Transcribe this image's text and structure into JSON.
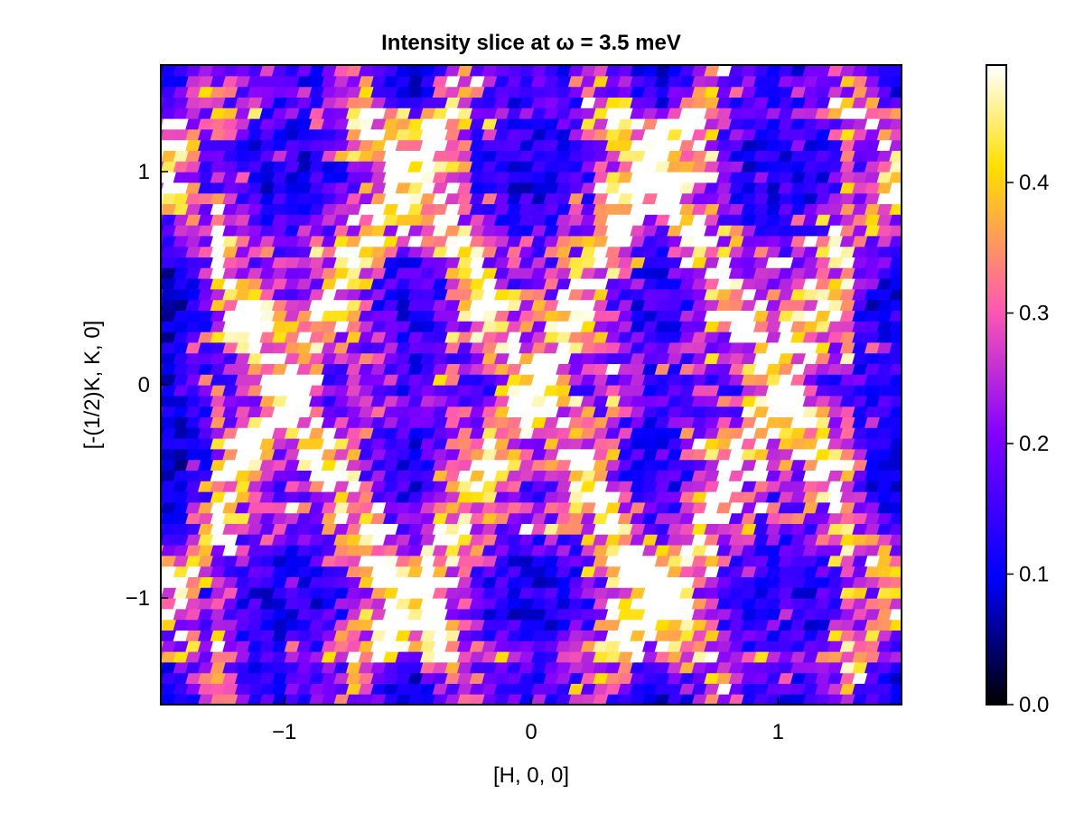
{
  "chart_data": {
    "type": "heatmap",
    "title": "Intensity slice at ω = 3.5 meV",
    "xlabel": "[H, 0, 0]",
    "ylabel": "[-(1/2)K, K, 0]",
    "xlim": [
      -1.5,
      1.5
    ],
    "ylim": [
      -1.5,
      1.5
    ],
    "x_ticks": [
      -1,
      0,
      1
    ],
    "x_tick_labels": [
      "−1",
      "0",
      "1"
    ],
    "y_ticks": [
      -1,
      0,
      1
    ],
    "y_tick_labels": [
      "−1",
      "0",
      "1"
    ],
    "grid": false,
    "colorbar": {
      "range": [
        0.0,
        0.49
      ],
      "ticks": [
        0.0,
        0.1,
        0.2,
        0.3,
        0.4
      ],
      "tick_labels": [
        "0.0",
        "0.1",
        "0.2",
        "0.3",
        "0.4"
      ],
      "colormap": "gnuplot2",
      "colormap_stops": [
        {
          "v": 0.0,
          "c": "#000000"
        },
        {
          "v": 0.2,
          "c": "#0000ff"
        },
        {
          "v": 0.42,
          "c": "#8000ff"
        },
        {
          "v": 0.62,
          "c": "#ff5aaf"
        },
        {
          "v": 0.84,
          "c": "#ffdf00"
        },
        {
          "v": 1.0,
          "c": "#ffffff"
        }
      ]
    },
    "grid_size": {
      "nx": 60,
      "ny": 60
    },
    "cell_slant": 0.25,
    "features": "intensity concentrated along a lattice of diagonal streaks and ring-like segments around Q=(0,0), (±1,±1); low intensity (black/blue) in the corners and between streaks"
  }
}
